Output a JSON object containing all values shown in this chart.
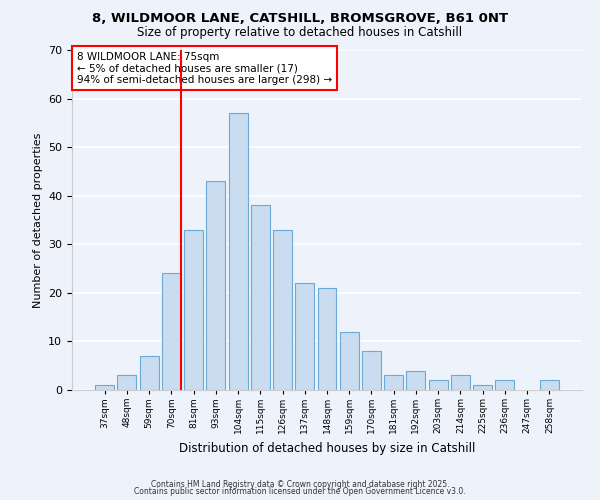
{
  "title1": "8, WILDMOOR LANE, CATSHILL, BROMSGROVE, B61 0NT",
  "title2": "Size of property relative to detached houses in Catshill",
  "xlabel": "Distribution of detached houses by size in Catshill",
  "ylabel": "Number of detached properties",
  "bins": [
    "37sqm",
    "48sqm",
    "59sqm",
    "70sqm",
    "81sqm",
    "93sqm",
    "104sqm",
    "115sqm",
    "126sqm",
    "137sqm",
    "148sqm",
    "159sqm",
    "170sqm",
    "181sqm",
    "192sqm",
    "203sqm",
    "214sqm",
    "225sqm",
    "236sqm",
    "247sqm",
    "258sqm"
  ],
  "values": [
    1,
    3,
    7,
    24,
    33,
    43,
    57,
    38,
    33,
    22,
    21,
    12,
    8,
    3,
    4,
    2,
    3,
    1,
    2,
    0,
    2
  ],
  "bar_color": "#c9dcf0",
  "bar_edge_color": "#6aaad4",
  "bg_color": "#eef2fb",
  "red_line_bin_index": 3,
  "annotation_line0": "8 WILDMOOR LANE: 75sqm",
  "annotation_line1": "← 5% of detached houses are smaller (17)",
  "annotation_line2": "94% of semi-detached houses are larger (298) →",
  "footer1": "Contains HM Land Registry data © Crown copyright and database right 2025.",
  "footer2": "Contains public sector information licensed under the Open Government Licence v3.0.",
  "ylim": [
    0,
    70
  ],
  "yticks": [
    0,
    10,
    20,
    30,
    40,
    50,
    60,
    70
  ]
}
